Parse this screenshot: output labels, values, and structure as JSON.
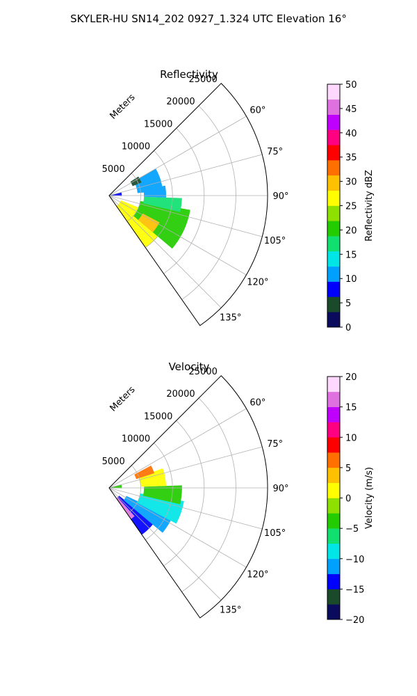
{
  "figure_title": "SKYLER-HU  SN14_202  0927_1.324 UTC Elevation 16°",
  "chart_data": [
    {
      "type": "polar-sector",
      "title": "Reflectivity",
      "radial_label": "Meters",
      "r_ticks": [
        "5000",
        "10000",
        "15000",
        "20000",
        "25000"
      ],
      "r_tick_values": [
        5000,
        10000,
        15000,
        20000,
        25000
      ],
      "r_max": 25000,
      "theta_ticks": [
        "60°",
        "75°",
        "90°",
        "105°",
        "120°",
        "135°"
      ],
      "theta_tick_values": [
        60,
        75,
        90,
        105,
        120,
        135
      ],
      "theta_range": [
        45,
        145
      ],
      "grid": true,
      "colorbar": {
        "label": "Reflectivity dBZ",
        "ticks": [
          "0",
          "5",
          "10",
          "15",
          "20",
          "25",
          "30",
          "35",
          "40",
          "45",
          "50"
        ],
        "range": [
          0,
          50
        ],
        "stops": [
          "#0b0b5e",
          "#1a4a2a",
          "#0000ff",
          "#00a0ff",
          "#00e5e5",
          "#10e070",
          "#22cc00",
          "#8ee000",
          "#ffff00",
          "#ffc000",
          "#ff7000",
          "#ff0000",
          "#ff0080",
          "#c000ff",
          "#e070e0",
          "#ffd8ff"
        ]
      },
      "echo_regions": [
        {
          "az": [
            112,
            145
          ],
          "r": [
            2000,
            10000
          ],
          "value": 25
        },
        {
          "az": [
            100,
            130
          ],
          "r": [
            5000,
            13000
          ],
          "value": 20
        },
        {
          "az": [
            92,
            103
          ],
          "r": [
            5500,
            11500
          ],
          "value": 17
        },
        {
          "az": [
            80,
            92
          ],
          "r": [
            5500,
            9000
          ],
          "value": 12
        },
        {
          "az": [
            60,
            85
          ],
          "r": [
            4500,
            8500
          ],
          "value": 11
        },
        {
          "az": [
            118,
            130
          ],
          "r": [
            6000,
            9000
          ],
          "value": 29
        },
        {
          "az": [
            57,
            68
          ],
          "r": [
            4000,
            5500
          ],
          "value": 4
        },
        {
          "az": [
            75,
            92
          ],
          "r": [
            0,
            2000
          ],
          "value": 9
        }
      ]
    },
    {
      "type": "polar-sector",
      "title": "Velocity",
      "radial_label": "Meters",
      "r_ticks": [
        "5000",
        "10000",
        "15000",
        "20000",
        "25000"
      ],
      "r_tick_values": [
        5000,
        10000,
        15000,
        20000,
        25000
      ],
      "r_max": 25000,
      "theta_ticks": [
        "60°",
        "75°",
        "90°",
        "105°",
        "120°",
        "135°"
      ],
      "theta_tick_values": [
        60,
        75,
        90,
        105,
        120,
        135
      ],
      "theta_range": [
        45,
        145
      ],
      "grid": true,
      "colorbar": {
        "label": "Velocity (m/s)",
        "ticks": [
          "−20",
          "−15",
          "−10",
          "−5",
          "0",
          "5",
          "10",
          "15",
          "20"
        ],
        "range": [
          -20,
          20
        ],
        "stops": [
          "#0b0b5e",
          "#1a4a2a",
          "#0000ff",
          "#00a0ff",
          "#00e5e5",
          "#10e070",
          "#22cc00",
          "#8ee000",
          "#ffff00",
          "#ffc000",
          "#ff7000",
          "#ff0000",
          "#ff0080",
          "#c000ff",
          "#e070e0",
          "#ffd8ff"
        ]
      },
      "echo_regions": [
        {
          "az": [
            128,
            145
          ],
          "r": [
            2000,
            9000
          ],
          "value": -14
        },
        {
          "az": [
            115,
            130
          ],
          "r": [
            3000,
            11000
          ],
          "value": -11
        },
        {
          "az": [
            100,
            118
          ],
          "r": [
            5000,
            12000
          ],
          "value": -8
        },
        {
          "az": [
            88,
            103
          ],
          "r": [
            5500,
            11500
          ],
          "value": -4
        },
        {
          "az": [
            70,
            88
          ],
          "r": [
            5000,
            9000
          ],
          "value": 1
        },
        {
          "az": [
            62,
            72
          ],
          "r": [
            4500,
            7500
          ],
          "value": 6
        },
        {
          "az": [
            138,
            145
          ],
          "r": [
            2000,
            6000
          ],
          "value": 16
        },
        {
          "az": [
            75,
            92
          ],
          "r": [
            0,
            2000
          ],
          "value": -3
        }
      ]
    }
  ]
}
